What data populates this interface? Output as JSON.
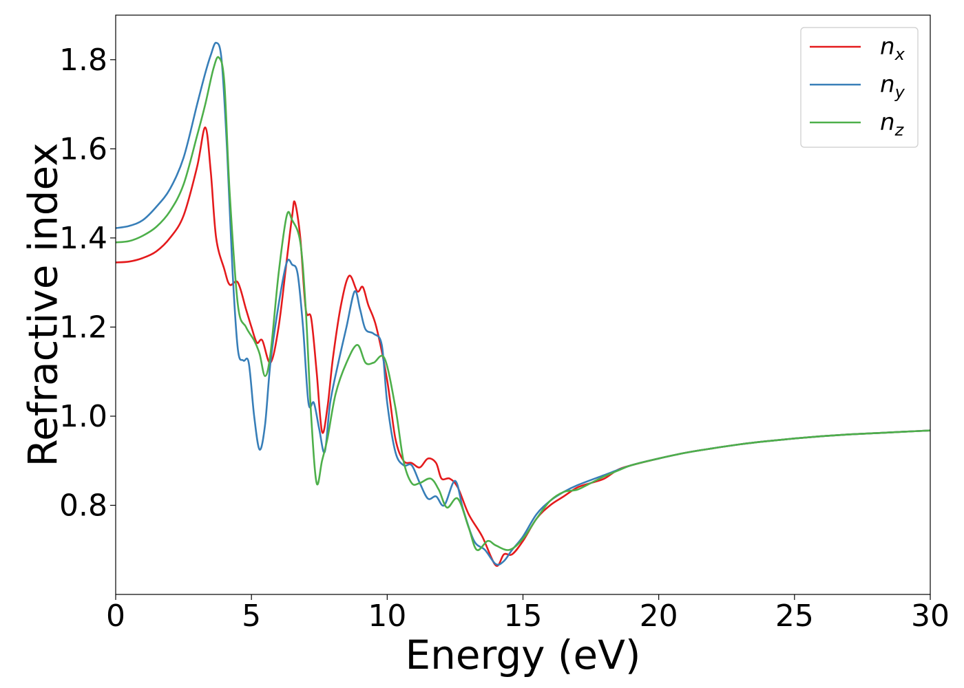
{
  "chart_data": {
    "type": "line",
    "xlabel": "Energy (eV)",
    "ylabel": "Refractive index",
    "xlim": [
      0,
      30
    ],
    "ylim": [
      0.6,
      1.9
    ],
    "xticks": [
      0,
      5,
      10,
      15,
      20,
      25,
      30
    ],
    "xtick_labels": [
      "0",
      "5",
      "10",
      "15",
      "20",
      "25",
      "30"
    ],
    "yticks": [
      0.8,
      1.0,
      1.2,
      1.4,
      1.6,
      1.8
    ],
    "ytick_labels": [
      "0.8",
      "1.0",
      "1.2",
      "1.4",
      "1.6",
      "1.8"
    ],
    "grid": false,
    "legend_position": "top-right",
    "series": [
      {
        "name": "n",
        "subscript": "x",
        "color": "#e41a1c",
        "points": [
          [
            0,
            1.345
          ],
          [
            0.5,
            1.347
          ],
          [
            1,
            1.355
          ],
          [
            1.5,
            1.37
          ],
          [
            2,
            1.4
          ],
          [
            2.5,
            1.45
          ],
          [
            3,
            1.56
          ],
          [
            3.3,
            1.648
          ],
          [
            3.5,
            1.55
          ],
          [
            3.7,
            1.4
          ],
          [
            4,
            1.33
          ],
          [
            4.2,
            1.295
          ],
          [
            4.5,
            1.3
          ],
          [
            4.8,
            1.24
          ],
          [
            5,
            1.2
          ],
          [
            5.2,
            1.165
          ],
          [
            5.4,
            1.17
          ],
          [
            5.7,
            1.12
          ],
          [
            6,
            1.2
          ],
          [
            6.3,
            1.35
          ],
          [
            6.5,
            1.45
          ],
          [
            6.6,
            1.48
          ],
          [
            6.8,
            1.4
          ],
          [
            7,
            1.24
          ],
          [
            7.2,
            1.22
          ],
          [
            7.4,
            1.1
          ],
          [
            7.6,
            0.965
          ],
          [
            7.8,
            1.02
          ],
          [
            8,
            1.13
          ],
          [
            8.3,
            1.25
          ],
          [
            8.6,
            1.315
          ],
          [
            8.9,
            1.28
          ],
          [
            9.1,
            1.29
          ],
          [
            9.3,
            1.25
          ],
          [
            9.6,
            1.2
          ],
          [
            10,
            1.08
          ],
          [
            10.3,
            0.95
          ],
          [
            10.6,
            0.9
          ],
          [
            10.9,
            0.895
          ],
          [
            11.2,
            0.885
          ],
          [
            11.5,
            0.905
          ],
          [
            11.8,
            0.895
          ],
          [
            12,
            0.86
          ],
          [
            12.3,
            0.86
          ],
          [
            12.6,
            0.84
          ],
          [
            13,
            0.78
          ],
          [
            13.5,
            0.73
          ],
          [
            14,
            0.665
          ],
          [
            14.3,
            0.69
          ],
          [
            14.6,
            0.69
          ],
          [
            15,
            0.72
          ],
          [
            15.5,
            0.77
          ],
          [
            16,
            0.8
          ],
          [
            16.5,
            0.82
          ],
          [
            17,
            0.84
          ],
          [
            17.5,
            0.85
          ],
          [
            18,
            0.86
          ],
          [
            18.5,
            0.88
          ],
          [
            19,
            0.89
          ],
          [
            20,
            0.905
          ],
          [
            21,
            0.918
          ],
          [
            22,
            0.928
          ],
          [
            23,
            0.937
          ],
          [
            24,
            0.944
          ],
          [
            25,
            0.95
          ],
          [
            26,
            0.955
          ],
          [
            27,
            0.959
          ],
          [
            28,
            0.962
          ],
          [
            29,
            0.965
          ],
          [
            30,
            0.968
          ]
        ]
      },
      {
        "name": "n",
        "subscript": "y",
        "color": "#377eb8",
        "points": [
          [
            0,
            1.422
          ],
          [
            0.5,
            1.427
          ],
          [
            1,
            1.44
          ],
          [
            1.5,
            1.47
          ],
          [
            2,
            1.51
          ],
          [
            2.5,
            1.58
          ],
          [
            3,
            1.7
          ],
          [
            3.3,
            1.77
          ],
          [
            3.5,
            1.81
          ],
          [
            3.7,
            1.838
          ],
          [
            3.9,
            1.8
          ],
          [
            4.1,
            1.6
          ],
          [
            4.3,
            1.33
          ],
          [
            4.5,
            1.15
          ],
          [
            4.7,
            1.125
          ],
          [
            4.9,
            1.12
          ],
          [
            5.1,
            1.0
          ],
          [
            5.3,
            0.925
          ],
          [
            5.5,
            0.98
          ],
          [
            5.7,
            1.12
          ],
          [
            6,
            1.25
          ],
          [
            6.3,
            1.345
          ],
          [
            6.5,
            1.34
          ],
          [
            6.7,
            1.32
          ],
          [
            6.9,
            1.2
          ],
          [
            7.1,
            1.03
          ],
          [
            7.3,
            1.03
          ],
          [
            7.5,
            0.97
          ],
          [
            7.7,
            0.92
          ],
          [
            7.9,
            1.03
          ],
          [
            8.2,
            1.12
          ],
          [
            8.5,
            1.2
          ],
          [
            8.8,
            1.28
          ],
          [
            9,
            1.24
          ],
          [
            9.2,
            1.195
          ],
          [
            9.5,
            1.185
          ],
          [
            9.8,
            1.16
          ],
          [
            10,
            1.03
          ],
          [
            10.3,
            0.92
          ],
          [
            10.6,
            0.89
          ],
          [
            10.9,
            0.89
          ],
          [
            11.2,
            0.85
          ],
          [
            11.5,
            0.815
          ],
          [
            11.8,
            0.82
          ],
          [
            12.1,
            0.8
          ],
          [
            12.5,
            0.855
          ],
          [
            12.8,
            0.79
          ],
          [
            13.2,
            0.72
          ],
          [
            13.6,
            0.7
          ],
          [
            14,
            0.668
          ],
          [
            14.3,
            0.675
          ],
          [
            14.6,
            0.7
          ],
          [
            15,
            0.73
          ],
          [
            15.5,
            0.78
          ],
          [
            16,
            0.81
          ],
          [
            16.5,
            0.83
          ],
          [
            17,
            0.845
          ],
          [
            18,
            0.868
          ],
          [
            19,
            0.89
          ],
          [
            20,
            0.905
          ],
          [
            21,
            0.918
          ],
          [
            22,
            0.928
          ],
          [
            23,
            0.937
          ],
          [
            24,
            0.944
          ],
          [
            25,
            0.95
          ],
          [
            26,
            0.955
          ],
          [
            27,
            0.959
          ],
          [
            28,
            0.962
          ],
          [
            29,
            0.965
          ],
          [
            30,
            0.968
          ]
        ]
      },
      {
        "name": "n",
        "subscript": "z",
        "color": "#4daf4a",
        "points": [
          [
            0,
            1.39
          ],
          [
            0.5,
            1.393
          ],
          [
            1,
            1.405
          ],
          [
            1.5,
            1.425
          ],
          [
            2,
            1.46
          ],
          [
            2.5,
            1.52
          ],
          [
            3,
            1.63
          ],
          [
            3.3,
            1.7
          ],
          [
            3.6,
            1.78
          ],
          [
            3.8,
            1.805
          ],
          [
            4,
            1.75
          ],
          [
            4.2,
            1.5
          ],
          [
            4.5,
            1.25
          ],
          [
            4.8,
            1.2
          ],
          [
            5.1,
            1.17
          ],
          [
            5.3,
            1.14
          ],
          [
            5.5,
            1.09
          ],
          [
            5.7,
            1.14
          ],
          [
            6,
            1.32
          ],
          [
            6.3,
            1.45
          ],
          [
            6.5,
            1.44
          ],
          [
            6.8,
            1.39
          ],
          [
            7,
            1.24
          ],
          [
            7.2,
            1.0
          ],
          [
            7.4,
            0.85
          ],
          [
            7.6,
            0.9
          ],
          [
            7.8,
            0.95
          ],
          [
            8.1,
            1.05
          ],
          [
            8.5,
            1.12
          ],
          [
            8.9,
            1.16
          ],
          [
            9.2,
            1.12
          ],
          [
            9.5,
            1.12
          ],
          [
            9.9,
            1.13
          ],
          [
            10.3,
            1.02
          ],
          [
            10.6,
            0.9
          ],
          [
            10.9,
            0.85
          ],
          [
            11.2,
            0.85
          ],
          [
            11.6,
            0.86
          ],
          [
            11.9,
            0.835
          ],
          [
            12.2,
            0.795
          ],
          [
            12.6,
            0.815
          ],
          [
            13,
            0.75
          ],
          [
            13.3,
            0.7
          ],
          [
            13.7,
            0.72
          ],
          [
            14,
            0.71
          ],
          [
            14.5,
            0.7
          ],
          [
            15,
            0.725
          ],
          [
            15.5,
            0.77
          ],
          [
            16,
            0.81
          ],
          [
            16.5,
            0.83
          ],
          [
            17,
            0.835
          ],
          [
            17.5,
            0.85
          ],
          [
            18,
            0.865
          ],
          [
            18.5,
            0.878
          ],
          [
            19,
            0.89
          ],
          [
            20,
            0.905
          ],
          [
            21,
            0.918
          ],
          [
            22,
            0.928
          ],
          [
            23,
            0.937
          ],
          [
            24,
            0.944
          ],
          [
            25,
            0.95
          ],
          [
            26,
            0.955
          ],
          [
            27,
            0.959
          ],
          [
            28,
            0.962
          ],
          [
            29,
            0.965
          ],
          [
            30,
            0.968
          ]
        ]
      }
    ]
  }
}
